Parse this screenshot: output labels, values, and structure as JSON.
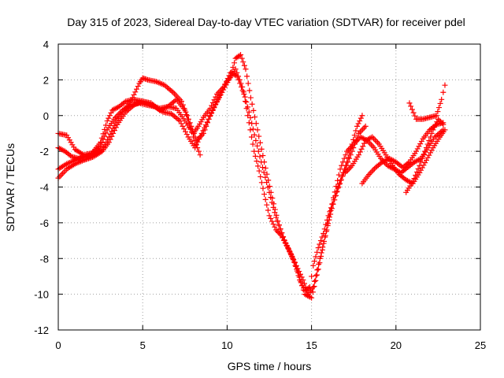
{
  "chart_data": {
    "type": "scatter",
    "title": "Day 315 of 2023, Sidereal Day-to-day VTEC variation (SDTVAR) for receiver pdel",
    "xlabel": "GPS time / hours",
    "ylabel": "SDTVAR / TECUs",
    "xlim": [
      0,
      25
    ],
    "ylim": [
      -12,
      4
    ],
    "xticks": [
      "0",
      "5",
      "10",
      "15",
      "20",
      "25"
    ],
    "yticks": [
      "-12",
      "-10",
      "-8",
      "-6",
      "-4",
      "-2",
      "0",
      "2",
      "4"
    ],
    "grid": true,
    "marker": "+",
    "color": "#ff0000",
    "series": [
      {
        "x": [
          0.0,
          0.5,
          1.0,
          1.5,
          2.0,
          2.5,
          2.9,
          3.2,
          3.6,
          4.0,
          4.5,
          5.0,
          5.5,
          6.0,
          6.5,
          7.0,
          7.5,
          8.0,
          8.3,
          8.6,
          9.0,
          9.4,
          9.8,
          10.2,
          10.6,
          11.0,
          11.3,
          11.6,
          11.9,
          12.2,
          12.5,
          12.9,
          13.2,
          13.6,
          14.0,
          14.3,
          14.6,
          14.9,
          15.1,
          15.4,
          15.7,
          16.0,
          16.4,
          16.8,
          17.1,
          17.4,
          17.7,
          18.0
        ],
        "y": [
          -1.0,
          -1.1,
          -1.9,
          -2.2,
          -2.1,
          -1.5,
          -0.3,
          0.3,
          0.5,
          0.8,
          0.9,
          0.8,
          0.6,
          0.4,
          0.5,
          0.4,
          -0.3,
          -1.0,
          -0.6,
          -0.1,
          0.4,
          1.2,
          1.6,
          2.4,
          2.2,
          1.2,
          -0.4,
          -2.0,
          -3.1,
          -4.4,
          -5.6,
          -6.4,
          -6.7,
          -7.4,
          -8.2,
          -9.2,
          -9.8,
          -9.6,
          -8.4,
          -7.4,
          -6.6,
          -5.6,
          -4.5,
          -3.4,
          -2.6,
          -1.6,
          -0.6,
          0.0
        ]
      },
      {
        "x": [
          0.0,
          0.4,
          0.8,
          1.2,
          1.6,
          2.0,
          2.5,
          2.9,
          3.3,
          3.8,
          4.3,
          4.8,
          5.2,
          5.7,
          6.2,
          6.7,
          7.2,
          7.7,
          8.1,
          8.5,
          8.9,
          9.3,
          9.7,
          10.1,
          10.5,
          10.9,
          11.3,
          11.7,
          12.1,
          12.5,
          12.9,
          13.3,
          13.7,
          14.1,
          14.5,
          14.8,
          15.1,
          15.5,
          15.9,
          16.3,
          16.7,
          17.1,
          17.5,
          17.9,
          18.3,
          18.7,
          19.1,
          19.5,
          19.9,
          20.3,
          20.7,
          21.1,
          21.5,
          21.9,
          22.3,
          22.8
        ],
        "y": [
          -1.8,
          -2.0,
          -2.3,
          -2.4,
          -2.3,
          -2.1,
          -1.7,
          -0.8,
          -0.2,
          0.3,
          0.6,
          0.7,
          0.6,
          0.5,
          0.2,
          0.1,
          -0.3,
          -1.2,
          -1.8,
          -1.0,
          -0.2,
          0.6,
          1.3,
          2.0,
          2.6,
          1.6,
          0.2,
          -1.4,
          -2.9,
          -4.3,
          -5.7,
          -6.8,
          -7.6,
          -8.4,
          -9.2,
          -10.0,
          -9.6,
          -8.0,
          -6.4,
          -4.6,
          -3.0,
          -2.0,
          -1.6,
          -1.2,
          -1.4,
          -1.8,
          -2.4,
          -2.8,
          -3.0,
          -3.2,
          -2.9,
          -2.6,
          -2.4,
          -1.8,
          -1.2,
          -0.8
        ]
      },
      {
        "x": [
          0.0,
          0.5,
          1.0,
          1.5,
          2.0,
          2.6,
          3.0,
          3.4,
          3.9,
          4.4,
          4.8,
          5.0,
          5.3,
          5.8,
          6.3,
          6.8,
          7.3,
          7.8,
          8.2,
          8.6,
          9.0,
          9.4,
          9.8,
          10.2,
          10.5,
          10.8,
          11.1,
          11.4,
          11.8,
          12.2,
          12.6,
          13.0,
          13.4,
          13.8,
          14.2,
          14.6,
          15.0,
          15.4,
          15.8,
          16.2,
          16.6,
          17.0,
          17.4,
          17.8,
          18.2
        ],
        "y": [
          -3.0,
          -2.7,
          -2.5,
          -2.3,
          -2.2,
          -1.9,
          -1.2,
          -0.4,
          0.3,
          1.0,
          1.8,
          2.1,
          2.0,
          1.9,
          1.7,
          1.3,
          0.8,
          -0.4,
          -1.4,
          -1.0,
          0.0,
          0.8,
          1.6,
          2.2,
          3.2,
          3.4,
          2.6,
          1.0,
          -0.8,
          -2.6,
          -4.3,
          -5.9,
          -7.0,
          -7.8,
          -8.8,
          -10.0,
          -10.2,
          -8.6,
          -6.8,
          -5.2,
          -4.0,
          -3.0,
          -2.0,
          -1.0,
          -0.6
        ]
      },
      {
        "x": [
          0.0,
          0.5,
          1.0,
          1.5,
          2.1,
          2.6,
          3.0,
          3.5,
          4.0,
          4.5,
          5.0,
          5.5,
          6.0,
          6.5,
          7.0,
          7.5,
          8.0,
          8.4
        ],
        "y": [
          -3.5,
          -3.0,
          -2.7,
          -2.5,
          -2.3,
          -2.0,
          -1.5,
          -0.5,
          0.2,
          0.6,
          0.8,
          0.7,
          0.3,
          0.5,
          0.9,
          0.3,
          -1.2,
          -2.2
        ]
      },
      {
        "x": [
          17.0,
          17.4,
          17.8,
          18.2,
          18.6,
          19.0,
          19.4,
          19.8,
          20.2,
          20.6,
          21.0,
          21.4,
          21.8,
          22.2,
          22.6,
          22.9
        ],
        "y": [
          -3.2,
          -2.8,
          -2.2,
          -1.4,
          -1.2,
          -1.6,
          -2.2,
          -2.8,
          -3.3,
          -3.6,
          -3.8,
          -3.2,
          -2.5,
          -1.8,
          -1.2,
          -0.8
        ]
      },
      {
        "x": [
          18.0,
          18.4,
          18.8,
          19.2,
          19.6,
          20.0,
          20.4,
          20.8,
          21.2,
          21.6,
          22.0,
          22.4,
          22.8
        ],
        "y": [
          -3.8,
          -3.3,
          -2.9,
          -2.6,
          -2.4,
          -2.6,
          -2.9,
          -2.6,
          -2.0,
          -1.3,
          -0.8,
          -0.5,
          -0.4
        ]
      },
      {
        "x": [
          20.6,
          21.0,
          21.4,
          21.8,
          22.2,
          22.5,
          22.8
        ],
        "y": [
          -4.3,
          -3.7,
          -2.8,
          -1.8,
          -0.8,
          -0.2,
          -0.5
        ]
      },
      {
        "x": [
          20.8,
          21.2,
          21.6,
          22.0,
          22.4,
          22.7,
          22.9
        ],
        "y": [
          0.7,
          -0.2,
          -0.2,
          -0.1,
          0.0,
          0.9,
          1.7
        ]
      }
    ]
  }
}
